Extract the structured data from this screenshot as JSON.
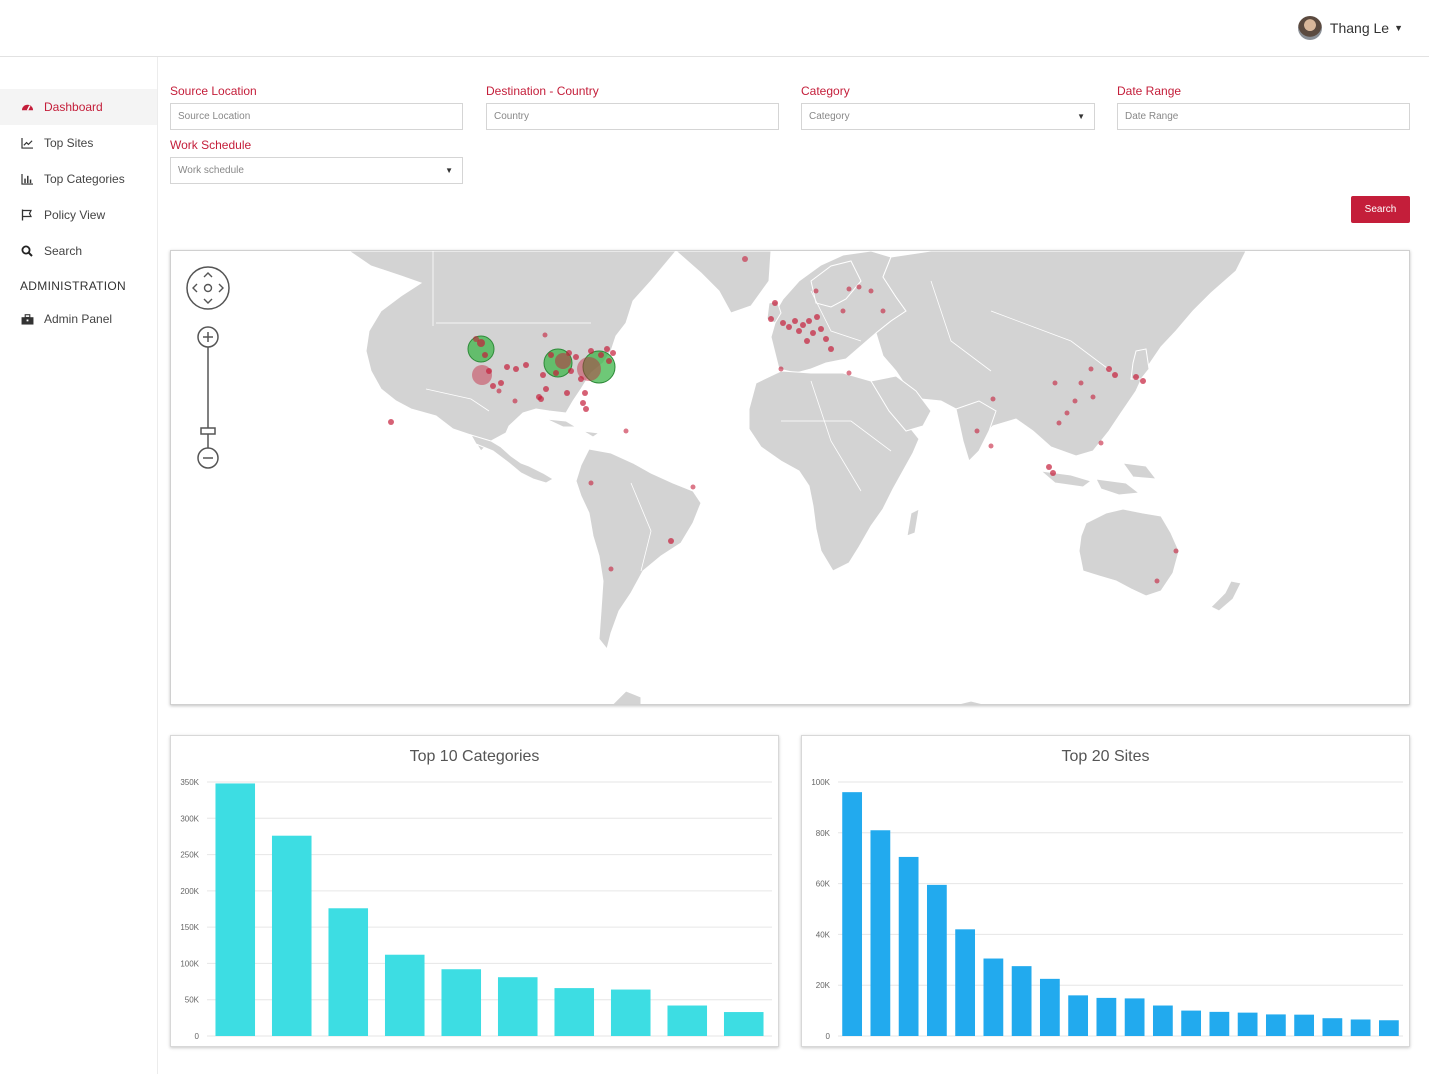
{
  "header": {
    "user_name": "Thang Le"
  },
  "sidebar": {
    "items": [
      {
        "label": "Dashboard",
        "icon": "dashboard-icon",
        "active": true
      },
      {
        "label": "Top Sites",
        "icon": "line-chart-icon"
      },
      {
        "label": "Top Categories",
        "icon": "bar-chart-icon"
      },
      {
        "label": "Policy View",
        "icon": "flag-icon"
      },
      {
        "label": "Search",
        "icon": "search-icon"
      }
    ],
    "admin_heading": "ADMINISTRATION",
    "admin_items": [
      {
        "label": "Admin Panel",
        "icon": "toolbox-icon"
      }
    ]
  },
  "filters": {
    "source_location": {
      "label": "Source Location",
      "placeholder": "Source Location"
    },
    "destination_country": {
      "label": "Destination - Country",
      "placeholder": "Country"
    },
    "category": {
      "label": "Category",
      "placeholder": "Category"
    },
    "date_range": {
      "label": "Date Range",
      "placeholder": "Date Range"
    },
    "work_schedule": {
      "label": "Work Schedule",
      "placeholder": "Work schedule"
    },
    "search_label": "Search"
  },
  "colors": {
    "accent": "#c41e3a",
    "land": "#d3d3d3",
    "point": "#c41e3a",
    "cluster": "#3db54a",
    "bar_categories": "#3ddde3",
    "bar_sites": "#22aaee"
  },
  "chart_data": [
    {
      "type": "bar",
      "title": "Top 10 Categories",
      "categories": [
        "",
        "",
        "",
        "",
        "",
        "",
        "",
        "",
        "",
        ""
      ],
      "values": [
        348000,
        276000,
        176000,
        112000,
        92000,
        81000,
        66000,
        64000,
        42000,
        33000
      ],
      "ylim": [
        0,
        350000
      ],
      "yticks": [
        "0",
        "50K",
        "100K",
        "150K",
        "200K",
        "250K",
        "300K",
        "350K"
      ],
      "grid": true
    },
    {
      "type": "bar",
      "title": "Top 20 Sites",
      "categories": [
        "",
        "",
        "",
        "",
        "",
        "",
        "",
        "",
        "",
        "",
        "",
        "",
        "",
        "",
        "",
        "",
        "",
        "",
        "",
        ""
      ],
      "values": [
        96000,
        81000,
        70500,
        59500,
        42000,
        30500,
        27500,
        22500,
        16000,
        15000,
        14800,
        12000,
        10000,
        9500,
        9200,
        8500,
        8400,
        7000,
        6500,
        6200
      ],
      "ylim": [
        0,
        100000
      ],
      "yticks": [
        "0",
        "20K",
        "40K",
        "60K",
        "80K",
        "100K"
      ],
      "grid": true
    }
  ]
}
